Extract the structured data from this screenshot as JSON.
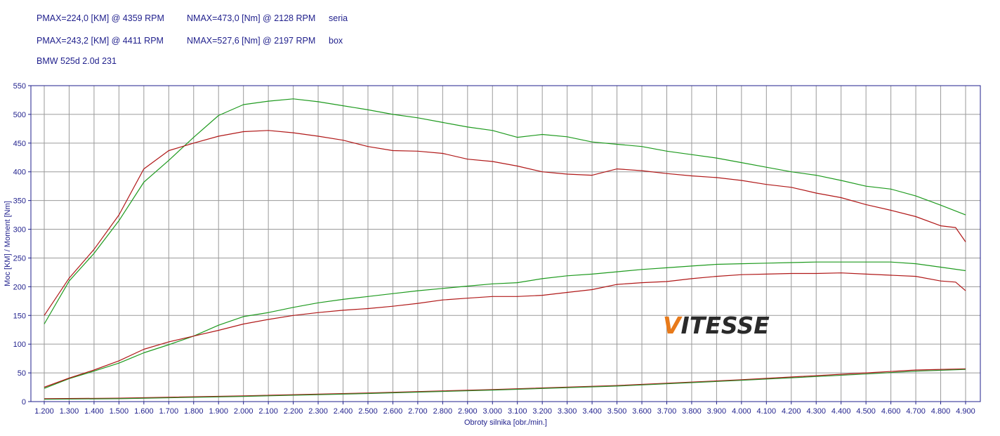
{
  "header": {
    "row1": {
      "power": "PMAX=224,0 [KM] @ 4359 RPM",
      "torque": "NMAX=473,0 [Nm] @ 2128 RPM",
      "tag": "seria"
    },
    "row2": {
      "power": "PMAX=243,2 [KM] @ 4411 RPM",
      "torque": "NMAX=527,6 [Nm] @ 2197 RPM",
      "tag": "box"
    },
    "vehicle": "BMW 525d 2.0d 231"
  },
  "logo": {
    "first": "V",
    "rest": "ITESSE",
    "accent_color": "#e87a1a",
    "text_color": "#2a2a2a"
  },
  "colors": {
    "stock": "#b01818",
    "tuned": "#1e9a1e",
    "loss": "#8a6a1a",
    "axis": "#1f1f8c",
    "grid": "#9a9a9a"
  },
  "chart_data": {
    "type": "line",
    "title": "",
    "xlabel": "Obroty silnika [obr./min.]",
    "ylabel": "Moc [KM] / Moment [Nm]",
    "xlim": [
      1200,
      4900
    ],
    "ylim": [
      0,
      550
    ],
    "grid": true,
    "x_tick_labels": [
      "1.200",
      "1.300",
      "1.400",
      "1.500",
      "1.600",
      "1.700",
      "1.800",
      "1.900",
      "2.000",
      "2.100",
      "2.200",
      "2.300",
      "2.400",
      "2.500",
      "2.600",
      "2.700",
      "2.800",
      "2.900",
      "3.000",
      "3.100",
      "3.200",
      "3.300",
      "3.400",
      "3.500",
      "3.600",
      "3.700",
      "3.800",
      "3.900",
      "4.000",
      "4.100",
      "4.200",
      "4.300",
      "4.400",
      "4.500",
      "4.600",
      "4.700",
      "4.800",
      "4.900"
    ],
    "y_tick_labels": [
      "0",
      "50",
      "100",
      "150",
      "200",
      "250",
      "300",
      "350",
      "400",
      "450",
      "500",
      "550"
    ],
    "series": [
      {
        "key": "stock_torque",
        "x": [
          1200,
          1300,
          1400,
          1500,
          1600,
          1700,
          1800,
          1900,
          2000,
          2100,
          2200,
          2300,
          2400,
          2500,
          2600,
          2700,
          2800,
          2900,
          3000,
          3100,
          3200,
          3300,
          3400,
          3500,
          3600,
          3700,
          3800,
          3900,
          4000,
          4100,
          4200,
          4300,
          4400,
          4500,
          4600,
          4700,
          4800,
          4860,
          4900
        ],
        "values": [
          150,
          215,
          265,
          325,
          405,
          437,
          450,
          462,
          470,
          472,
          468,
          462,
          455,
          444,
          437,
          436,
          432,
          422,
          418,
          410,
          400,
          396,
          394,
          405,
          402,
          397,
          393,
          390,
          385,
          378,
          373,
          363,
          355,
          343,
          333,
          322,
          306,
          303,
          278
        ]
      },
      {
        "key": "tuned_torque",
        "x": [
          1200,
          1300,
          1400,
          1500,
          1600,
          1700,
          1800,
          1900,
          2000,
          2100,
          2200,
          2300,
          2400,
          2500,
          2600,
          2700,
          2800,
          2900,
          3000,
          3100,
          3200,
          3300,
          3400,
          3500,
          3600,
          3700,
          3800,
          3900,
          4000,
          4100,
          4200,
          4300,
          4400,
          4500,
          4600,
          4700,
          4800,
          4900
        ],
        "values": [
          135,
          210,
          258,
          315,
          382,
          420,
          460,
          498,
          517,
          523,
          527,
          522,
          515,
          508,
          500,
          494,
          486,
          478,
          472,
          460,
          465,
          461,
          452,
          448,
          444,
          436,
          430,
          424,
          416,
          408,
          400,
          394,
          385,
          375,
          370,
          358,
          342,
          325
        ]
      },
      {
        "key": "stock_power",
        "x": [
          1200,
          1300,
          1400,
          1500,
          1600,
          1700,
          1800,
          1900,
          2000,
          2100,
          2200,
          2300,
          2400,
          2500,
          2600,
          2700,
          2800,
          2900,
          3000,
          3100,
          3200,
          3300,
          3400,
          3500,
          3600,
          3700,
          3800,
          3900,
          4000,
          4100,
          4200,
          4300,
          4400,
          4500,
          4600,
          4700,
          4800,
          4860,
          4900
        ],
        "values": [
          25,
          41,
          55,
          71,
          91,
          104,
          114,
          124,
          135,
          143,
          150,
          155,
          159,
          162,
          166,
          171,
          177,
          180,
          183,
          183,
          185,
          190,
          195,
          204,
          207,
          209,
          214,
          218,
          221,
          222,
          223,
          223,
          224,
          222,
          220,
          218,
          210,
          208,
          193
        ]
      },
      {
        "key": "tuned_power",
        "x": [
          1200,
          1300,
          1400,
          1500,
          1600,
          1700,
          1800,
          1900,
          2000,
          2100,
          2200,
          2300,
          2400,
          2500,
          2600,
          2700,
          2800,
          2900,
          3000,
          3100,
          3200,
          3300,
          3400,
          3500,
          3600,
          3700,
          3800,
          3900,
          4000,
          4100,
          4200,
          4300,
          4400,
          4500,
          4600,
          4700,
          4800,
          4900
        ],
        "values": [
          23,
          40,
          53,
          67,
          85,
          99,
          114,
          133,
          148,
          155,
          164,
          172,
          178,
          183,
          188,
          193,
          197,
          201,
          205,
          207,
          214,
          219,
          222,
          226,
          230,
          233,
          236,
          239,
          240,
          241,
          242,
          243,
          243,
          243,
          243,
          240,
          234,
          228
        ]
      },
      {
        "key": "stock_loss",
        "x": [
          1200,
          1500,
          2000,
          2500,
          3000,
          3500,
          4000,
          4500,
          4700,
          4900
        ],
        "values": [
          5,
          6,
          10,
          15,
          21,
          28,
          38,
          50,
          55,
          57
        ]
      },
      {
        "key": "tuned_loss",
        "x": [
          1200,
          1500,
          2000,
          2500,
          3000,
          3500,
          4000,
          4500,
          4700,
          4900
        ],
        "values": [
          4,
          5,
          9,
          14,
          20,
          27,
          37,
          48,
          53,
          56
        ]
      }
    ]
  }
}
